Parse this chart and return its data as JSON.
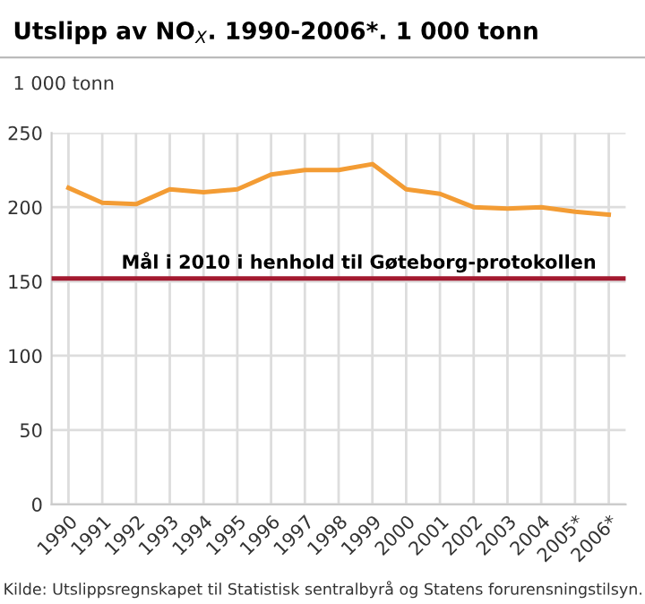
{
  "chart_data": {
    "type": "line",
    "title": "Utslipp av NO$_{X}$. 1990-2006*. 1 000 tonn",
    "ylabel": "1 000 tonn",
    "categories": [
      "1990",
      "1991",
      "1992",
      "1993",
      "1994",
      "1995",
      "1996",
      "1997",
      "1998",
      "1999",
      "2000",
      "2001",
      "2002",
      "2003",
      "2004",
      "2005*",
      "2006*"
    ],
    "series": [
      {
        "color": "#f39c34",
        "values": [
          213,
          203,
          202,
          212,
          210,
          212,
          222,
          225,
          225,
          229,
          212,
          209,
          200,
          199,
          200,
          197,
          195
        ]
      }
    ],
    "ylim": [
      0,
      250
    ],
    "yticks": [
      0,
      50,
      100,
      150,
      200,
      250
    ],
    "grid": true,
    "marker": "none",
    "line_style": "solid",
    "ref_lines": [
      {
        "axis": "y",
        "value": 152,
        "label": "Mål i 2010 i henhold til Gøteborg-protokollen",
        "color": "#a3192f"
      }
    ],
    "annotations": [
      "Kilde: Utslippsregnskapet til Statistisk sentralbyrå og Statens forurensningstilsyn."
    ]
  }
}
